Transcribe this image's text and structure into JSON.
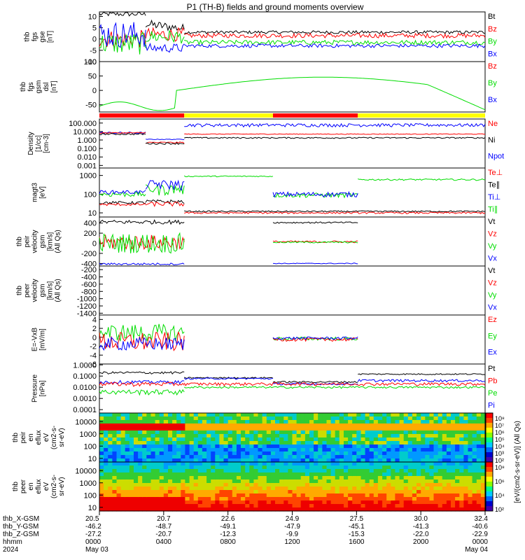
{
  "title": "P1 (TH-B) fields and ground moments overview",
  "colors": {
    "black": "#000000",
    "red": "#ff0000",
    "green": "#00dd00",
    "blue": "#0000ff",
    "yellow": "#ffff00"
  },
  "chart_data": {
    "type": "line",
    "time_range_hhmm": [
      "0000",
      "0000"
    ],
    "panels": [
      {
        "id": "fgs",
        "ylabel": [
          "thb",
          "fgs",
          "gse",
          "[nT]"
        ],
        "ylim": [
          -10,
          12
        ],
        "ticks": [
          -10,
          -5,
          0,
          5,
          10
        ],
        "legend": [
          {
            "name": "Bt",
            "color": "#000000"
          },
          {
            "name": "Bz",
            "color": "#ff0000"
          },
          {
            "name": "By",
            "color": "#00dd00"
          },
          {
            "name": "Bx",
            "color": "#0000ff"
          }
        ]
      },
      {
        "id": "fgs_dsl",
        "ylabel": [
          "thb",
          "fgs",
          "gsm",
          "dsl",
          "[nT]"
        ],
        "ylim": [
          -75,
          100
        ],
        "ticks": [
          -50,
          0,
          50,
          100
        ],
        "legend": [
          {
            "name": "Bz",
            "color": "#ff0000"
          },
          {
            "name": "By",
            "color": "#00dd00"
          },
          {
            "name": "Bx",
            "color": "#0000ff"
          }
        ],
        "series": [
          {
            "color": "#00dd00",
            "x": [
              0,
              0.25,
              0.5,
              0.75,
              1
            ],
            "y": [
              -55,
              -40,
              45,
              -20,
              -70
            ]
          }
        ]
      },
      {
        "id": "density",
        "ylabel": [
          "Density",
          "[1/cc]",
          "[cm-3]"
        ],
        "log": true,
        "ylim": [
          0.0005,
          300
        ],
        "ticks": [
          "100.000",
          "10.000",
          "1.000",
          "0.100",
          "0.010",
          "0.001"
        ],
        "legend": [
          {
            "name": "Ne",
            "color": "#ff0000"
          },
          {
            "name": "Ni",
            "color": "#000000"
          },
          {
            "name": "Npot",
            "color": "#0000ff"
          }
        ]
      },
      {
        "id": "temp",
        "ylabel": [
          "magt3",
          "[eV]"
        ],
        "log": true,
        "ylim": [
          6,
          2500
        ],
        "ticks": [
          "1000",
          "100",
          "10"
        ],
        "legend": [
          {
            "name": "Te⊥",
            "color": "#ff0000"
          },
          {
            "name": "Te∥",
            "color": "#000000"
          },
          {
            "name": "Ti⊥",
            "color": "#0000ff"
          },
          {
            "name": "Ti∥",
            "color": "#00dd00"
          }
        ]
      },
      {
        "id": "vi",
        "ylabel": [
          "thb",
          "peir",
          "velocity",
          "gsm",
          "[km/s]",
          "(All Qs)"
        ],
        "ylim": [
          -450,
          520
        ],
        "ticks": [
          -400,
          -200,
          0,
          200,
          400
        ],
        "legend": [
          {
            "name": "Vt",
            "color": "#000000"
          },
          {
            "name": "Vz",
            "color": "#ff0000"
          },
          {
            "name": "Vy",
            "color": "#00dd00"
          },
          {
            "name": "Vx",
            "color": "#0000ff"
          }
        ]
      },
      {
        "id": "ve",
        "ylabel": [
          "thb",
          "peer",
          "velocity",
          "gsm",
          "[km/s]",
          "(All Qs)"
        ],
        "ylim": [
          -1450,
          -100
        ],
        "ticks": [
          -200,
          -400,
          -600,
          -800,
          -1000,
          -1200,
          -1400
        ],
        "legend": [
          {
            "name": "Vt",
            "color": "#000000"
          },
          {
            "name": "Vz",
            "color": "#ff0000"
          },
          {
            "name": "Vy",
            "color": "#00dd00"
          },
          {
            "name": "Vx",
            "color": "#0000ff"
          }
        ]
      },
      {
        "id": "efield",
        "ylabel": [
          "E=-VxB",
          "[mV/m]"
        ],
        "ylim": [
          -6,
          5
        ],
        "ticks": [
          -6,
          -4,
          -2,
          0,
          2,
          4
        ],
        "legend": [
          {
            "name": "Ez",
            "color": "#ff0000"
          },
          {
            "name": "Ey",
            "color": "#00dd00"
          },
          {
            "name": "Ex",
            "color": "#0000ff"
          }
        ]
      },
      {
        "id": "pressure",
        "ylabel": [
          "Pressure",
          "[nPa]"
        ],
        "log": true,
        "ylim": [
          5e-05,
          1.2
        ],
        "ticks": [
          "1.0000",
          "0.1000",
          "0.0100",
          "0.0010",
          "0.0001"
        ],
        "legend": [
          {
            "name": "Pt",
            "color": "#000000"
          },
          {
            "name": "Pb",
            "color": "#ff0000"
          },
          {
            "name": "Pe",
            "color": "#00dd00"
          },
          {
            "name": "Pi",
            "color": "#0000ff"
          }
        ]
      },
      {
        "id": "ion_spec",
        "ylabel": [
          "thb",
          "peir",
          "en",
          "eflux",
          "eV",
          "(cm2-s-",
          "sr-eV)"
        ],
        "type": "heatmap",
        "ticks": [
          "10000",
          "1000",
          "100",
          "10"
        ]
      },
      {
        "id": "elec_spec",
        "ylabel": [
          "thb",
          "peer",
          "en",
          "eflux",
          "eV",
          "(cm2-s-",
          "sr-eV)"
        ],
        "type": "heatmap",
        "ticks": [
          "10000",
          "1000",
          "100",
          "10"
        ]
      }
    ],
    "colorbar": {
      "label": "[eV/(cm2-s-sr-eV)] (All Qs)",
      "upper_ticks": [
        "10⁸",
        "10⁷",
        "10⁶",
        "10⁵",
        "10⁴",
        "10³",
        "10²"
      ],
      "lower_ticks": [
        "10⁸",
        "10⁶",
        "10⁴",
        "10²"
      ]
    },
    "xaxis": {
      "row_labels": [
        "thb_X-GSM",
        "thb_Y-GSM",
        "thb_Z-GSM",
        "hhmm",
        "2024"
      ],
      "columns": [
        [
          "20.5",
          "-46.2",
          "-27.2",
          "0000",
          "May 03"
        ],
        [
          "20.7",
          "-48.7",
          "-20.7",
          "0400",
          ""
        ],
        [
          "22.6",
          "-49.1",
          "-12.3",
          "0800",
          ""
        ],
        [
          "24.9",
          "-47.9",
          "-9.9",
          "1200",
          ""
        ],
        [
          "27.5",
          "-45.1",
          "-15.3",
          "1600",
          ""
        ],
        [
          "30.0",
          "-41.3",
          "-22.0",
          "2000",
          ""
        ],
        [
          "32.4",
          "-40.6",
          "-22.9",
          "0000",
          "May 04"
        ]
      ]
    }
  }
}
